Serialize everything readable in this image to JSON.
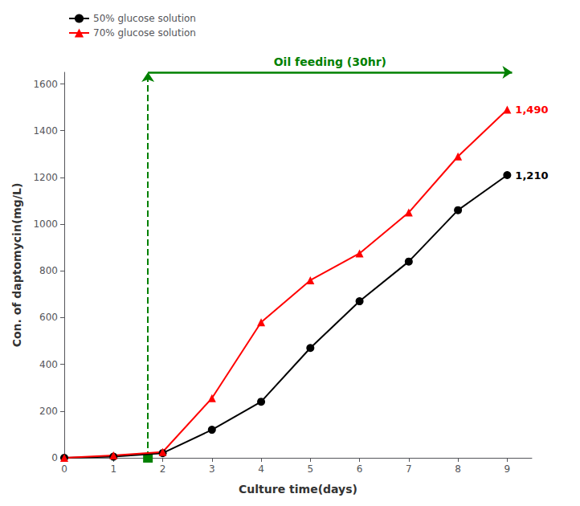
{
  "chart_data": {
    "type": "line",
    "xlabel": "Culture time(days)",
    "ylabel": "Con. of daptomycin(mg/L)",
    "x": [
      0,
      1,
      2,
      3,
      4,
      5,
      6,
      7,
      8,
      9
    ],
    "series": [
      {
        "name": "50% glucose solution",
        "color": "#000000",
        "marker": "circle",
        "values": [
          0,
          5,
          20,
          120,
          240,
          470,
          670,
          840,
          1060,
          1210
        ]
      },
      {
        "name": "70% glucose solution",
        "color": "#ff0000",
        "marker": "triangle",
        "values": [
          0,
          10,
          25,
          255,
          580,
          760,
          875,
          1050,
          1290,
          1490
        ]
      }
    ],
    "xlim": [
      0,
      9.5
    ],
    "ylim": [
      0,
      1650
    ],
    "xticks": [
      0,
      1,
      2,
      3,
      4,
      5,
      6,
      7,
      8,
      9
    ],
    "yticks": [
      0,
      200,
      400,
      600,
      800,
      1000,
      1200,
      1400,
      1600
    ],
    "grid": false,
    "legend": "upper left",
    "annotations": [
      {
        "text": "Oil feeding (30hr)",
        "x": 1.7,
        "x_end": 9.1,
        "y": 1650,
        "color": "#008000",
        "line_style": "dashed"
      },
      {
        "text": "1,210",
        "x": 9,
        "y": 1210,
        "color": "#000000"
      },
      {
        "text": "1,490",
        "x": 9,
        "y": 1490,
        "color": "#ff0000"
      }
    ]
  }
}
